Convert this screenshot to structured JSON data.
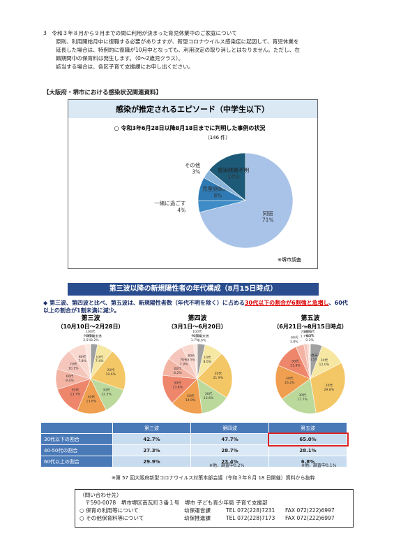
{
  "section3": {
    "heading": "3　令和３年８月から９月までの間に利用が決まった育児休業中のご家庭について",
    "lines": [
      "原則、利用開始月中に復職する必要がありますが、新型コロナウイルス感染症に起因して、育児休業を",
      "延長した場合は、特例的に復職が10月中となっても、利用決定の取り消しとはなりません。ただし、在",
      "籍期間中の保育料は発生します。（0～2歳児クラス）。",
      "該当する場合は、各区子育て支援課にお申し出ください。"
    ]
  },
  "osaka_heading": "【大阪府・堺市における感染状況関連資料】",
  "chart_data": [
    {
      "type": "pie",
      "title": "感染が推定されるエピソード（中学生以下）",
      "subtitle": "○ 令和3年6月28日以降8月18日までに判明した事例の状況",
      "count": "（146 件）",
      "note": "※堺市調査",
      "categories": [
        "同居",
        "一緒に過ごす",
        "児童施設関連",
        "その他",
        "感染経路不明"
      ],
      "values": [
        71,
        4,
        8,
        3,
        14
      ],
      "value_labels": [
        "71%",
        "4%",
        "8%",
        "3%",
        "14%"
      ],
      "colors": [
        "#a9c3e8",
        "#3f8cc6",
        "#2f7ab4",
        "#8ab4da",
        "#1d5a78"
      ]
    },
    {
      "type": "pie",
      "title": "第三波",
      "subtitle": "（10月10日～2月28日）",
      "categories": [
        "10歳未満",
        "10代",
        "20代",
        "30代",
        "40代",
        "50代",
        "60代",
        "70代",
        "80代",
        "90代",
        "100代"
      ],
      "values": [
        3.2,
        7.4,
        19.6,
        12.5,
        13.6,
        13.7,
        9.4,
        10.1,
        7.8,
        2.5,
        0.1
      ],
      "value_labels": [
        "3.2%",
        "7.4%",
        "19.6%",
        "12.5%",
        "13.6%",
        "13.7%",
        "9.4%",
        "10.1%",
        "7.8%",
        "2.5%",
        "0.1%"
      ],
      "colors": [
        "#a0a0a0",
        "#f6e7a2",
        "#f4c766",
        "#bcd99c",
        "#ef9f4f",
        "#ee866c",
        "#f3b4a4",
        "#f5c6bc",
        "#f9d8cf",
        "#fbe7df",
        "#ffffff"
      ]
    },
    {
      "type": "pie",
      "title": "第四波",
      "subtitle": "（3月1日～6月20日）",
      "categories": [
        "10歳未満",
        "10代",
        "20代",
        "30代",
        "40代",
        "50代",
        "60代",
        "70代",
        "80代",
        "90代",
        "100代"
      ],
      "values": [
        3.6,
        8.6,
        21.9,
        13.6,
        14.9,
        13.8,
        8.2,
        7.9,
        5.5,
        1.7,
        0.1
      ],
      "value_labels": [
        "3.6%",
        "8.6%",
        "21.9%",
        "13.6%",
        "14.9%",
        "13.8%",
        "8.2%",
        "7.9%",
        "5.5%",
        "1.7%",
        "0.1%"
      ],
      "colors": [
        "#a0a0a0",
        "#f6e7a2",
        "#f4c766",
        "#bcd99c",
        "#ef9f4f",
        "#ee866c",
        "#f3b4a4",
        "#f5c6bc",
        "#f9d8cf",
        "#fbe7df",
        "#ffffff"
      ]
    },
    {
      "type": "pie",
      "title": "第五波",
      "subtitle": "（6月21日～8月15日時点）",
      "categories": [
        "10歳未満",
        "10代",
        "20代",
        "30代",
        "40代",
        "50代",
        "60代",
        "70代",
        "80代",
        "90代",
        "100代"
      ],
      "values": [
        5.5,
        12.0,
        29.8,
        17.7,
        16.2,
        11.9,
        3.8,
        1.7,
        0.9,
        0.3,
        0.1
      ],
      "value_labels": [
        "5.5%",
        "12.0%",
        "29.8%",
        "17.7%",
        "16.2%",
        "11.9%",
        "3.8%",
        "1.7%",
        "0.9%",
        "0.3%",
        "0.1%"
      ],
      "colors": [
        "#a0a0a0",
        "#f6e7a2",
        "#f4c766",
        "#bcd99c",
        "#ef9f4f",
        "#ee866c",
        "#f3b4a4",
        "#f5c6bc",
        "#f9d8cf",
        "#fbe7df",
        "#ffffff"
      ]
    }
  ],
  "wave": {
    "banner": "第三波以降の新規陽性者の年代構成（8月15日時点）",
    "summary": [
      "第三波、第四波と比べ、第五波は、新規陽性者数（年代不明を除く）に占める",
      "30代以下の割合が6割強と急増し",
      "、60代以上の割合が1割未満に減少。"
    ]
  },
  "table": {
    "header": [
      "第三波",
      "第四波",
      "第五波"
    ],
    "rows": [
      [
        "30代以下の割合",
        "42.7%",
        "47.7%",
        "65.0%"
      ],
      [
        "40-50代の割合",
        "27.3%",
        "28.7%",
        "28.1%"
      ],
      [
        "60代以上の割合",
        "29.9%",
        "23.4%",
        "6.8%"
      ]
    ],
    "notes": [
      "※他、調査中0.2%",
      "※他、調査中0.1%"
    ]
  },
  "source": "※第 57 回大阪府新型コロナウイルス対策本部会議（令和３年８月 18 日開催）資料から抜粋",
  "contact": {
    "title": "（問い合わせ先）",
    "address": "〒590-0078　堺市堺区南瓦町３番１号　堺市 子ども青少年局 子育て支援部",
    "rows": [
      [
        "○ 保育の利用等について",
        "幼保運営課",
        "TEL 072(228)7231",
        "FAX 072(222)6997"
      ],
      [
        "○ その他保育料等について",
        "幼保推進課",
        "TEL 072(228)7173",
        "FAX 072(222)6997"
      ]
    ]
  }
}
